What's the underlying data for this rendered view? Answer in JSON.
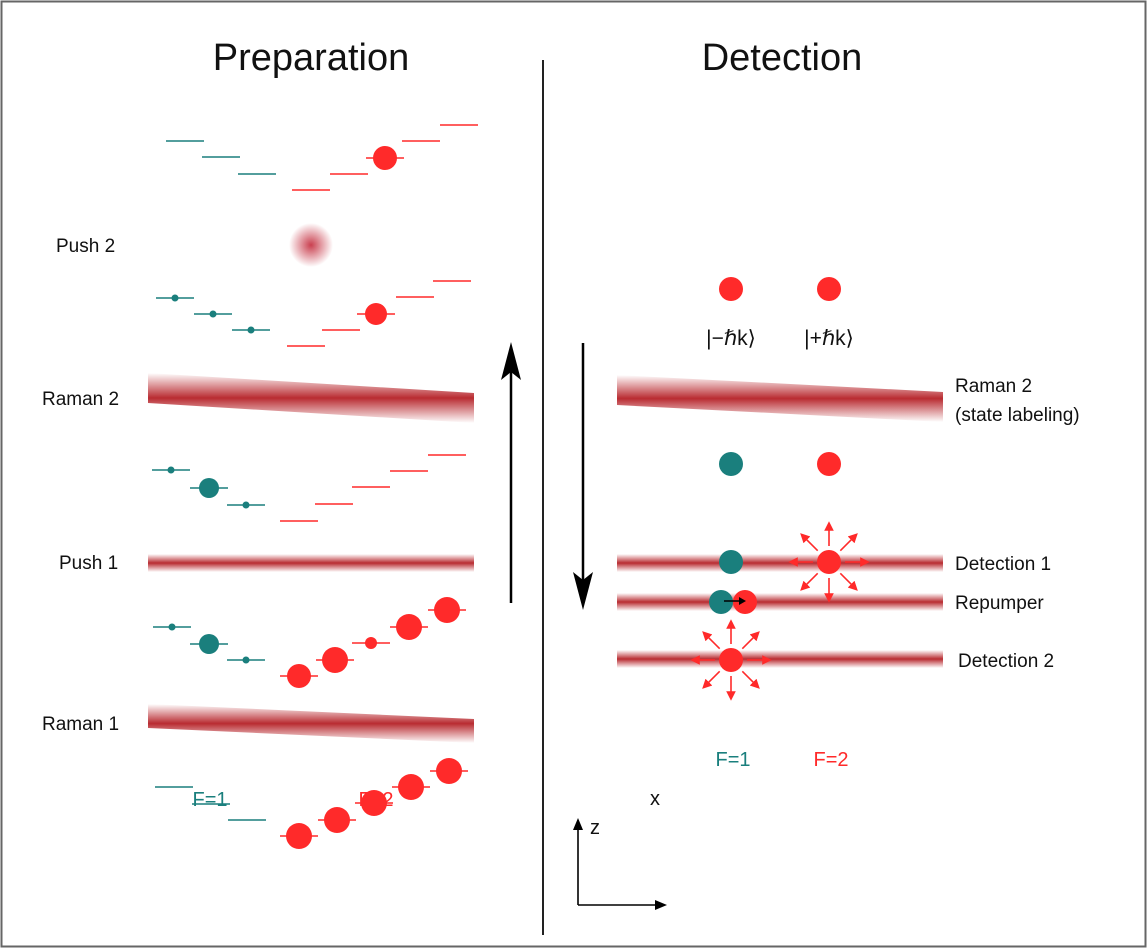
{
  "colors": {
    "teal": "#1a7f7d",
    "red": "#ff2a2a",
    "beam": "#b52026",
    "frame": "#666666",
    "divider": "#222222"
  },
  "titles": {
    "preparation": "Preparation",
    "detection": "Detection"
  },
  "preparation": {
    "labels": {
      "push2": "Push 2",
      "raman2": "Raman 2",
      "push1": "Push 1",
      "raman1": "Raman 1"
    },
    "f1": "F=1",
    "f2": "F=2"
  },
  "detection": {
    "kets": {
      "minus": "|−ℏk⟩",
      "plus": "|+ℏk⟩"
    },
    "labels": {
      "raman2_line1": "Raman 2",
      "raman2_line2": "(state labeling)",
      "detection1": "Detection 1",
      "repumper": "Repumper",
      "detection2": "Detection 2"
    },
    "f1": "F=1",
    "f2": "F=2"
  },
  "axes": {
    "z": "z",
    "x": "x"
  }
}
